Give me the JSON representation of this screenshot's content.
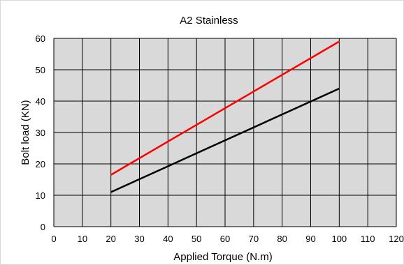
{
  "chart_data": {
    "type": "line",
    "title": "A2 Stainless",
    "xlabel": "Applied Torque (N.m)",
    "ylabel": "Bolt load (KN)",
    "xlim": [
      0,
      120
    ],
    "ylim": [
      0,
      60
    ],
    "xticks": [
      0,
      10,
      20,
      30,
      40,
      50,
      60,
      70,
      80,
      90,
      100,
      110,
      120
    ],
    "yticks": [
      0,
      10,
      20,
      30,
      40,
      50,
      60
    ],
    "xtick_labels": [
      "0",
      "10",
      "20",
      "30",
      "40",
      "50",
      "60",
      "70",
      "80",
      "90",
      "100",
      "110",
      "120"
    ],
    "ytick_labels": [
      "0",
      "10",
      "20",
      "30",
      "40",
      "50",
      "60"
    ],
    "grid": true,
    "legend": "none",
    "plot_background": "#d9d9d9",
    "series": [
      {
        "color": "#ff0000",
        "x": [
          20,
          100
        ],
        "y": [
          16.5,
          59
        ]
      },
      {
        "color": "#000000",
        "x": [
          20,
          100
        ],
        "y": [
          11,
          44
        ]
      }
    ]
  }
}
